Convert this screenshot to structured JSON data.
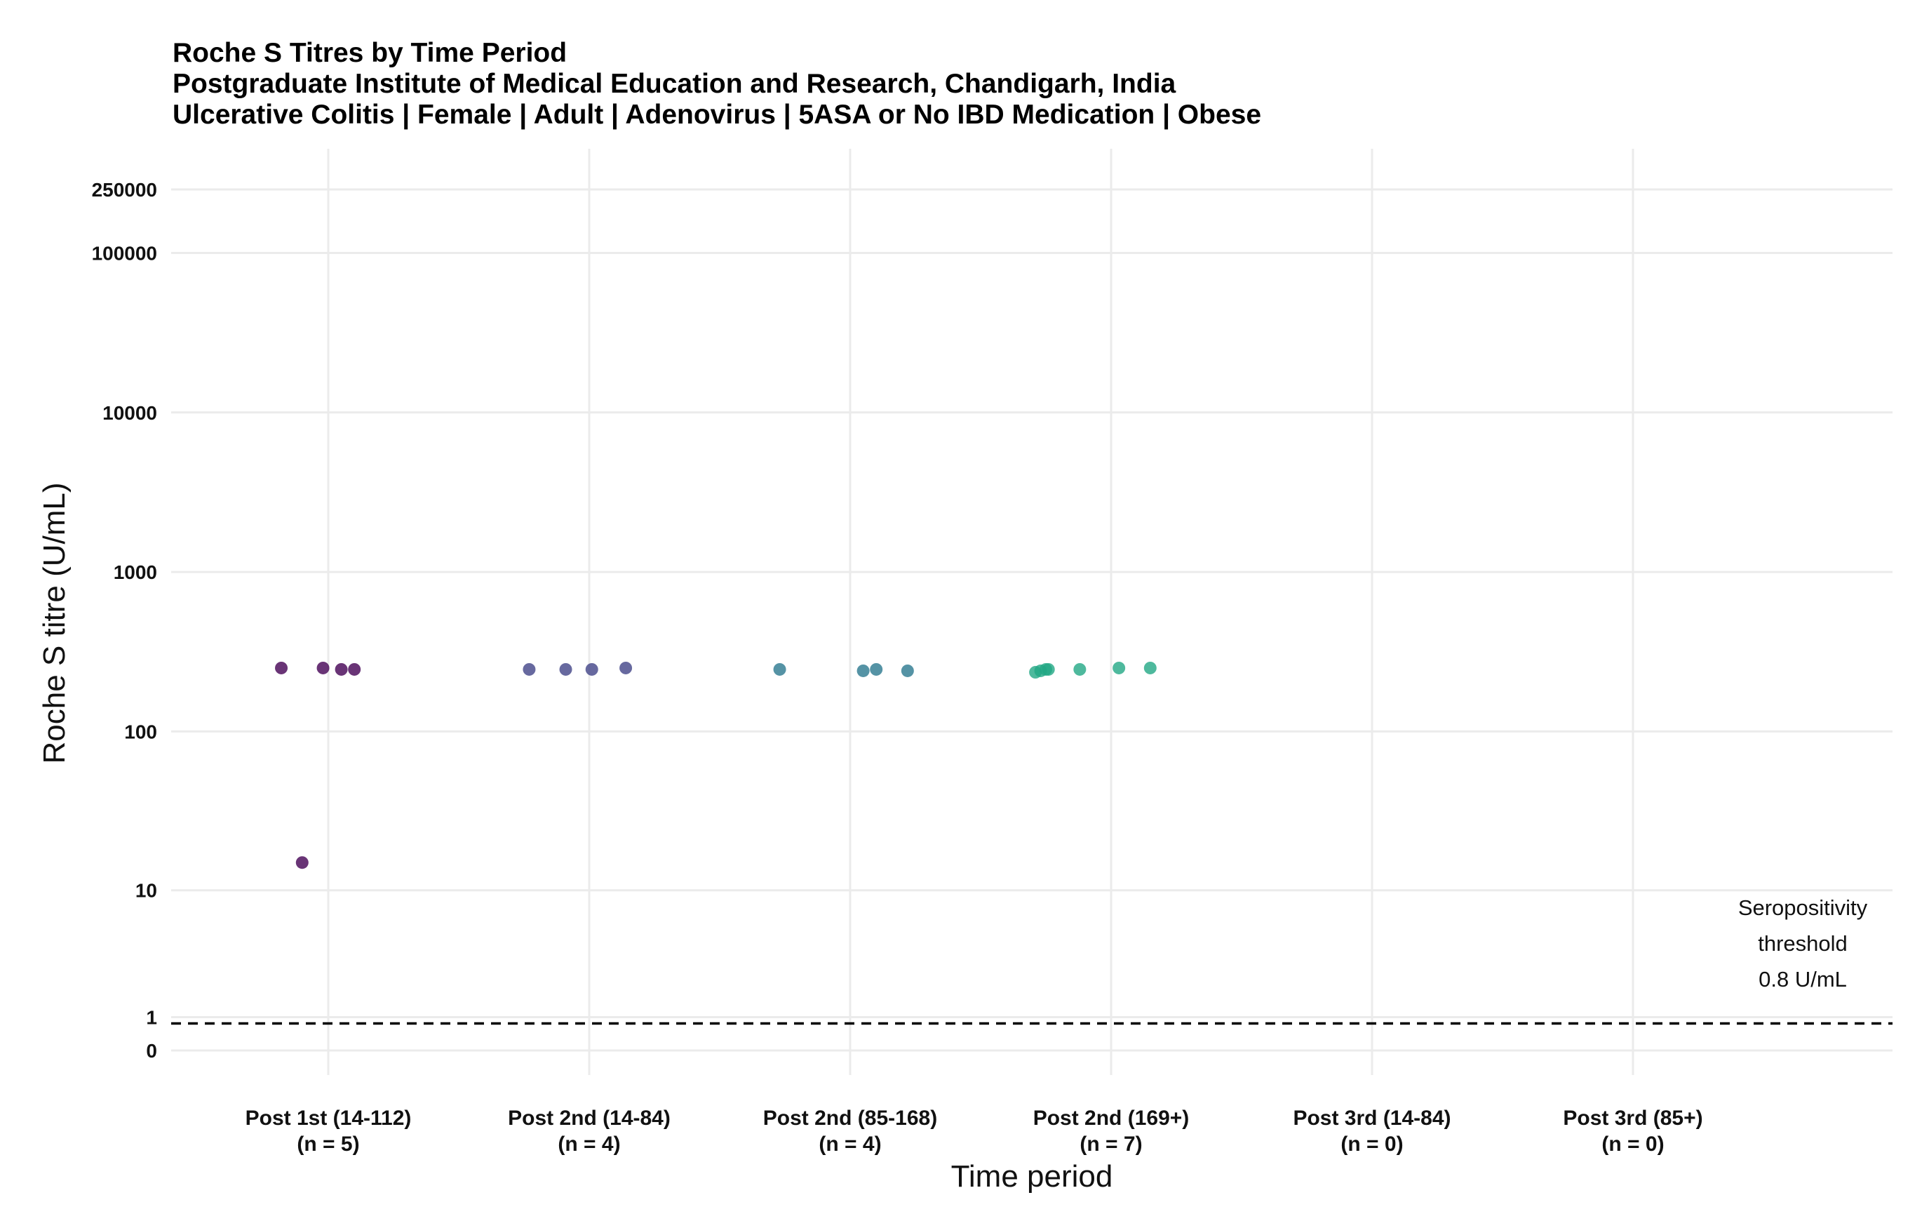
{
  "chart_data": {
    "type": "scatter",
    "title": "Roche S Titres by Time Period",
    "subtitle_lines": [
      "Postgraduate Institute of Medical Education and Research, Chandigarh, India",
      "Ulcerative Colitis | Female | Adult | Adenovirus | 5ASA or No IBD Medication | Obese"
    ],
    "xlabel": "Time period",
    "ylabel": "Roche S titre (U/mL)",
    "y_scale": "pseudo-log",
    "y_ticks": [
      0,
      1,
      10,
      100,
      1000,
      10000,
      100000,
      250000
    ],
    "y_tick_labels": [
      "0",
      "1",
      "10",
      "100",
      "1000",
      "10000",
      "100000",
      "250000"
    ],
    "ylim": [
      0,
      250000
    ],
    "grid": true,
    "categories": [
      {
        "label": "Post 1st (14-112)",
        "n_label": "(n = 5)",
        "color": "#440154"
      },
      {
        "label": "Post 2nd (14-84)",
        "n_label": "(n = 4)",
        "color": "#414487"
      },
      {
        "label": "Post 2nd (85-168)",
        "n_label": "(n = 4)",
        "color": "#2a788e"
      },
      {
        "label": "Post 2nd (169+)",
        "n_label": "(n = 7)",
        "color": "#22a884"
      },
      {
        "label": "Post 3rd (14-84)",
        "n_label": "(n = 0)",
        "color": "#7ad151"
      },
      {
        "label": "Post 3rd (85+)",
        "n_label": "(n = 0)",
        "color": "#fde725"
      }
    ],
    "points": [
      {
        "category": 0,
        "jitter": -0.18,
        "y": 250
      },
      {
        "category": 0,
        "jitter": -0.1,
        "y": 15
      },
      {
        "category": 0,
        "jitter": -0.02,
        "y": 250
      },
      {
        "category": 0,
        "jitter": 0.05,
        "y": 245
      },
      {
        "category": 0,
        "jitter": 0.1,
        "y": 245
      },
      {
        "category": 1,
        "jitter": -0.23,
        "y": 245
      },
      {
        "category": 1,
        "jitter": -0.09,
        "y": 245
      },
      {
        "category": 1,
        "jitter": 0.01,
        "y": 245
      },
      {
        "category": 1,
        "jitter": 0.14,
        "y": 250
      },
      {
        "category": 2,
        "jitter": -0.27,
        "y": 245
      },
      {
        "category": 2,
        "jitter": 0.05,
        "y": 240
      },
      {
        "category": 2,
        "jitter": 0.1,
        "y": 245
      },
      {
        "category": 2,
        "jitter": 0.22,
        "y": 240
      },
      {
        "category": 3,
        "jitter": -0.29,
        "y": 235
      },
      {
        "category": 3,
        "jitter": -0.27,
        "y": 240
      },
      {
        "category": 3,
        "jitter": -0.25,
        "y": 245
      },
      {
        "category": 3,
        "jitter": -0.24,
        "y": 245
      },
      {
        "category": 3,
        "jitter": -0.12,
        "y": 245
      },
      {
        "category": 3,
        "jitter": 0.03,
        "y": 250
      },
      {
        "category": 3,
        "jitter": 0.15,
        "y": 250
      }
    ],
    "threshold": {
      "value": 0.8,
      "line_style": "dashed",
      "label_lines": [
        "Seropositivity",
        "threshold",
        "0.8 U/mL"
      ]
    },
    "legend": "none"
  }
}
